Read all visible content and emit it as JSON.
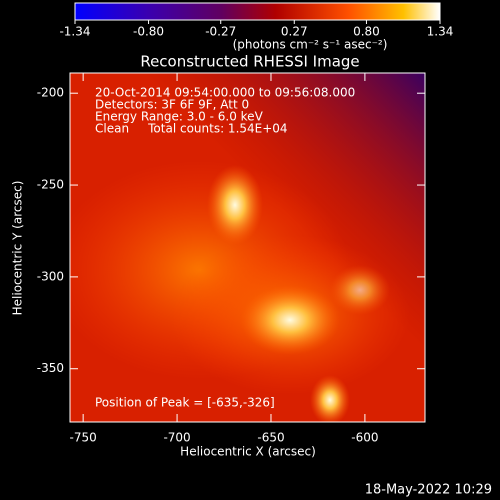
{
  "chart_data": {
    "type": "image",
    "title": "Reconstructed RHESSI Image",
    "x_label": "Heliocentric X (arcsec)",
    "y_label": "Heliocentric Y (arcsec)",
    "xlim": [
      -757,
      -568
    ],
    "ylim": [
      -379,
      -189
    ],
    "xticks": [
      -750,
      -700,
      -650,
      -600
    ],
    "yticks": [
      -350,
      -300,
      -250,
      -200
    ],
    "colorbar": {
      "label": "(photons cm⁻² s⁻¹ asec⁻²)",
      "clim": [
        -1.34,
        1.34
      ],
      "ticks": [
        -1.34,
        {
          "value": -0.8,
          "label": "-0.80"
        },
        -0.27,
        0.27,
        {
          "value": 0.8,
          "label": "0.80"
        },
        1.34
      ]
    },
    "annotations": [
      "20-Oct-2014 09:54:00.000 to 09:56:08.000",
      "Detectors: 3F 6F 9F, Att 0",
      "Energy Range: 3.0 - 6.0 keV",
      "Clean     Total counts: 1.54E+04"
    ],
    "peak_label": "Position of Peak = [-635,-326]",
    "footer": "18-May-2022 10:29"
  }
}
